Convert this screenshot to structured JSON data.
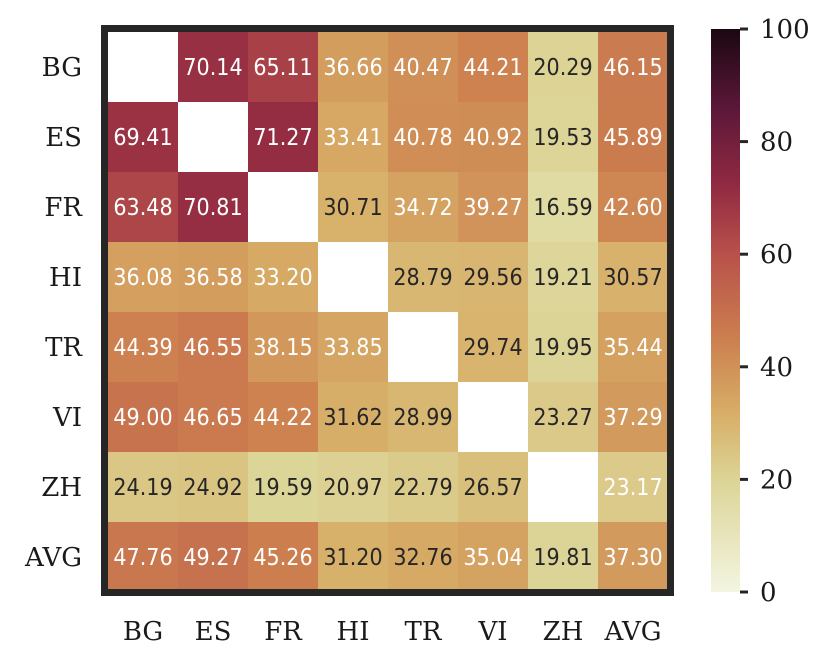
{
  "chart_data": {
    "type": "heatmap",
    "rows": [
      "BG",
      "ES",
      "FR",
      "HI",
      "TR",
      "VI",
      "ZH",
      "AVG"
    ],
    "cols": [
      "BG",
      "ES",
      "FR",
      "HI",
      "TR",
      "VI",
      "ZH",
      "AVG"
    ],
    "values": [
      [
        null,
        70.14,
        65.11,
        36.66,
        40.47,
        44.21,
        20.29,
        46.15
      ],
      [
        69.41,
        null,
        71.27,
        33.41,
        40.78,
        40.92,
        19.53,
        45.89
      ],
      [
        63.48,
        70.81,
        null,
        30.71,
        34.72,
        39.27,
        16.59,
        42.6
      ],
      [
        36.08,
        36.58,
        33.2,
        null,
        28.79,
        29.56,
        19.21,
        30.57
      ],
      [
        44.39,
        46.55,
        38.15,
        33.85,
        null,
        29.74,
        19.95,
        35.44
      ],
      [
        49.0,
        46.65,
        44.22,
        31.62,
        28.99,
        null,
        23.27,
        37.29
      ],
      [
        24.19,
        24.92,
        19.59,
        20.97,
        22.79,
        26.57,
        null,
        23.17
      ],
      [
        47.76,
        49.27,
        45.26,
        31.2,
        32.76,
        35.04,
        19.81,
        37.3
      ]
    ],
    "value_labels": [
      [
        "",
        "70.14",
        "65.11",
        "36.66",
        "40.47",
        "44.21",
        "20.29",
        "46.15"
      ],
      [
        "69.41",
        "",
        "71.27",
        "33.41",
        "40.78",
        "40.92",
        "19.53",
        "45.89"
      ],
      [
        "63.48",
        "70.81",
        "",
        "30.71",
        "34.72",
        "39.27",
        "16.59",
        "42.60"
      ],
      [
        "36.08",
        "36.58",
        "33.20",
        "",
        "28.79",
        "29.56",
        "19.21",
        "30.57"
      ],
      [
        "44.39",
        "46.55",
        "38.15",
        "33.85",
        "",
        "29.74",
        "19.95",
        "35.44"
      ],
      [
        "49.00",
        "46.65",
        "44.22",
        "31.62",
        "28.99",
        "",
        "23.27",
        "37.29"
      ],
      [
        "24.19",
        "24.92",
        "19.59",
        "20.97",
        "22.79",
        "26.57",
        "",
        "23.17"
      ],
      [
        "47.76",
        "49.27",
        "45.26",
        "31.20",
        "32.76",
        "35.04",
        "19.81",
        "37.30"
      ]
    ],
    "light_text_cells": [
      [
        false,
        true,
        true,
        true,
        true,
        true,
        false,
        true
      ],
      [
        true,
        false,
        true,
        true,
        true,
        true,
        false,
        true
      ],
      [
        true,
        true,
        false,
        false,
        true,
        true,
        false,
        true
      ],
      [
        true,
        true,
        true,
        false,
        false,
        false,
        false,
        false
      ],
      [
        true,
        true,
        true,
        true,
        false,
        false,
        false,
        true
      ],
      [
        true,
        true,
        true,
        false,
        false,
        false,
        false,
        true
      ],
      [
        false,
        false,
        false,
        false,
        false,
        false,
        false,
        true
      ],
      [
        true,
        true,
        true,
        false,
        false,
        true,
        false,
        true
      ]
    ],
    "colorscale": {
      "name": "pink-brown sequential",
      "vmin": 0,
      "vmax": 100,
      "stops": [
        {
          "v": 0,
          "color": "#f3f5e1"
        },
        {
          "v": 20,
          "color": "#dcd496"
        },
        {
          "v": 32,
          "color": "#d7ad66"
        },
        {
          "v": 45,
          "color": "#cc7f4f"
        },
        {
          "v": 60,
          "color": "#b8514a"
        },
        {
          "v": 72,
          "color": "#922a42"
        },
        {
          "v": 86,
          "color": "#5b1738"
        },
        {
          "v": 100,
          "color": "#1b0712"
        }
      ]
    },
    "colorbar": {
      "ticks": [
        0,
        20,
        40,
        60,
        80,
        100
      ],
      "tick_labels": [
        "0",
        "20",
        "40",
        "60",
        "80",
        "100"
      ]
    },
    "grid": false,
    "title": "",
    "xlabel": "",
    "ylabel": "",
    "diagonal_color": "#ffffff",
    "frame_color": "#262626",
    "light_text_color": "#ffffff",
    "dark_text_color": "#262626"
  }
}
